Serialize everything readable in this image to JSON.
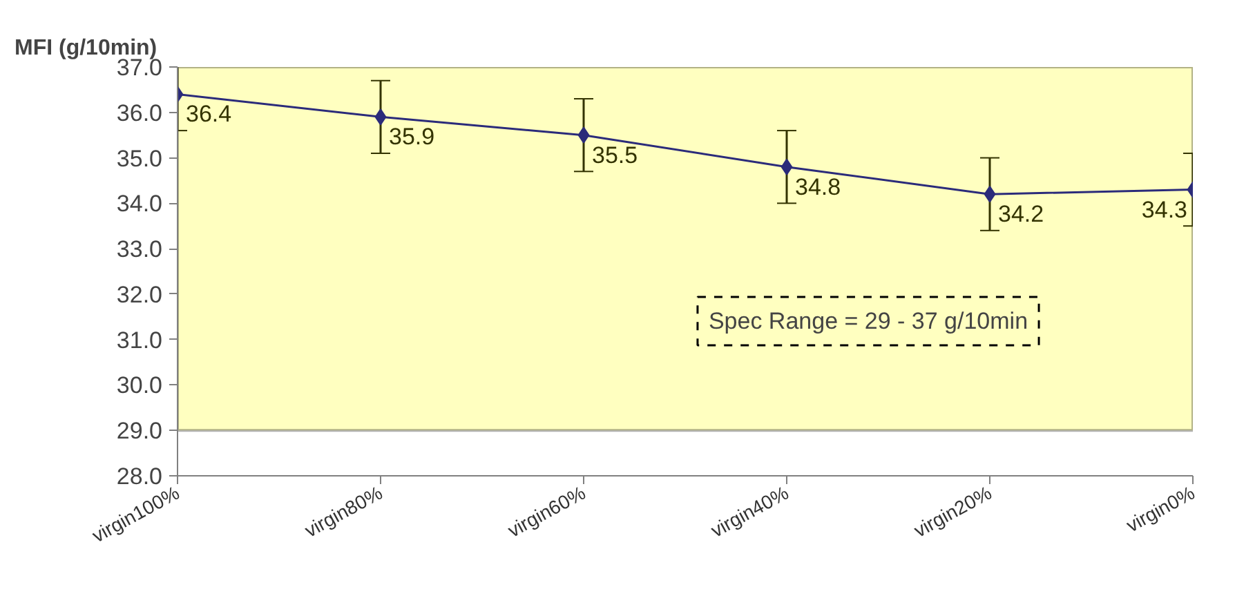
{
  "chart_data": {
    "type": "line",
    "ylabel": "MFI (g/10min)",
    "categories": [
      "virgin100%",
      "virgin80%",
      "virgin60%",
      "virgin40%",
      "virgin20%",
      "virgin0%"
    ],
    "series": [
      {
        "color": "#2b2b7a",
        "values": [
          36.4,
          35.9,
          35.5,
          34.8,
          34.2,
          34.3
        ],
        "errors": [
          0.8,
          0.8,
          0.8,
          0.8,
          0.8,
          0.8
        ]
      }
    ],
    "ylim": [
      28,
      37
    ],
    "yticks": [
      {
        "value": 28,
        "label": "28.0"
      },
      {
        "value": 29,
        "label": "29.0"
      },
      {
        "value": 30,
        "label": "30.0"
      },
      {
        "value": 31,
        "label": "31.0"
      },
      {
        "value": 32,
        "label": "32.0"
      },
      {
        "value": 33,
        "label": "33.0"
      },
      {
        "value": 34,
        "label": "34.0"
      },
      {
        "value": 35,
        "label": "35.0"
      },
      {
        "value": 36,
        "label": "36.0"
      },
      {
        "value": 37,
        "label": "37.0"
      }
    ],
    "bands": [
      {
        "axis": "y",
        "from": 29,
        "to": 37,
        "color": "#ffffc0"
      }
    ],
    "annotations": [
      "Spec Range = 29 - 37 g/10min"
    ],
    "data_labels": true,
    "marker": "diamond",
    "line_style": "solid",
    "grid": false
  }
}
